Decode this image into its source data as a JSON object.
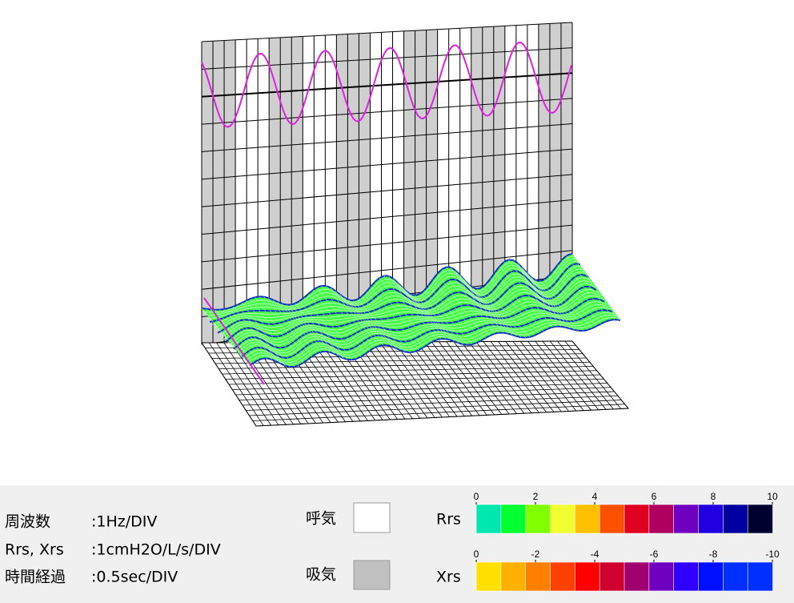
{
  "legend": {
    "rows": [
      {
        "label": "周波数",
        "value": ":1Hz/DIV"
      },
      {
        "label": "Rrs, Xrs",
        "value": ":1cmH2O/L/s/DIV"
      },
      {
        "label": "時間経過",
        "value": ":0.5sec/DIV"
      }
    ]
  },
  "breath": {
    "exhale": "呼気",
    "inhale": "吸気",
    "exhale_color": "#ffffff",
    "inhale_color": "#c0c0c0"
  },
  "scales": [
    {
      "name": "Rrs",
      "ticks": [
        0,
        2,
        4,
        6,
        8,
        10
      ],
      "colors": [
        "#00e8b0",
        "#00ff30",
        "#80ff00",
        "#f0ff30",
        "#ffc000",
        "#ff5000",
        "#e00020",
        "#b00060",
        "#7000c0",
        "#2000e0",
        "#0000a0",
        "#000030"
      ]
    },
    {
      "name": "Xrs",
      "ticks": [
        0,
        -2,
        -4,
        -6,
        -8,
        -10
      ],
      "colors": [
        "#ffe000",
        "#ffb000",
        "#ff8000",
        "#ff4000",
        "#ff0000",
        "#d00030",
        "#a00070",
        "#7000c0",
        "#3000ff",
        "#0010ff",
        "#0030ff",
        "#0030ff"
      ]
    }
  ]
}
